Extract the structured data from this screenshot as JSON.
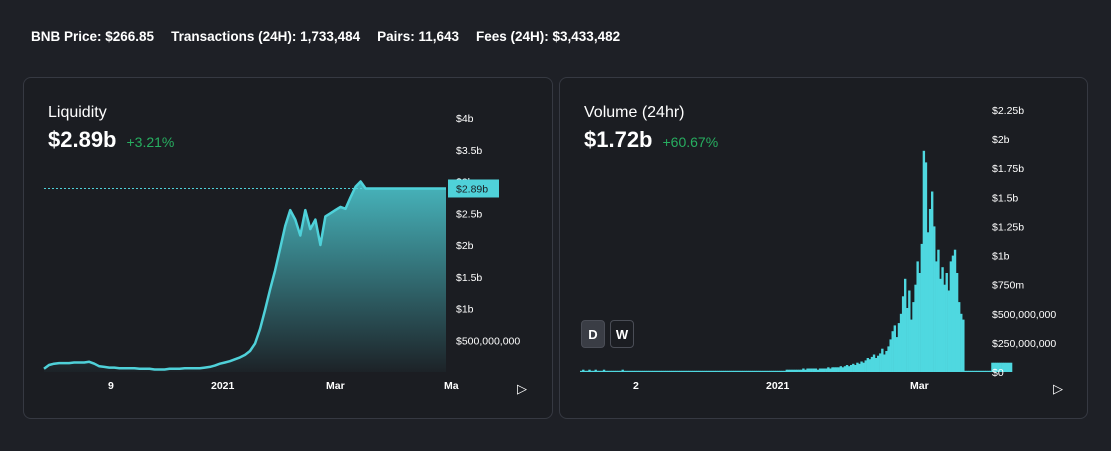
{
  "stats": {
    "bnb_price": "BNB Price: $266.85",
    "transactions": "Transactions (24H): 1,733,484",
    "pairs": "Pairs: 11,643",
    "fees": "Fees (24H): $3,433,482"
  },
  "liquidity": {
    "title": "Liquidity",
    "value": "$2.89b",
    "change": "+3.21%",
    "current_label": "$2.89b",
    "accent": "#4fd1d9",
    "chart_data": {
      "type": "area",
      "title": "Liquidity",
      "yticks": [
        "$500,000,000",
        "$1b",
        "$1.5b",
        "$2b",
        "$2.5b",
        "$3b",
        "$3.5b",
        "$4b"
      ],
      "ylim": [
        0,
        4000000000
      ],
      "xticks": [
        "9",
        "2021",
        "Mar",
        "Ma"
      ],
      "current_value": 2890000000,
      "series": [
        {
          "values": [
            0.05,
            0.11,
            0.13,
            0.14,
            0.14,
            0.14,
            0.15,
            0.15,
            0.15,
            0.16,
            0.13,
            0.09,
            0.08,
            0.07,
            0.07,
            0.06,
            0.06,
            0.06,
            0.06,
            0.05,
            0.05,
            0.05,
            0.04,
            0.04,
            0.04,
            0.05,
            0.05,
            0.05,
            0.06,
            0.06,
            0.06,
            0.06,
            0.07,
            0.08,
            0.1,
            0.13,
            0.15,
            0.17,
            0.2,
            0.23,
            0.27,
            0.33,
            0.45,
            0.68,
            0.98,
            1.3,
            1.6,
            1.95,
            2.3,
            2.55,
            2.4,
            2.15,
            2.55,
            2.25,
            2.4,
            2.0,
            2.45,
            2.5,
            2.55,
            2.6,
            2.57,
            2.75,
            2.92,
            3.0,
            2.89,
            2.89,
            2.89,
            2.89,
            2.89,
            2.89,
            2.89,
            2.89,
            2.89,
            2.89,
            2.89,
            2.89,
            2.89,
            2.89,
            2.89,
            2.89,
            2.89
          ]
        }
      ]
    }
  },
  "volume": {
    "title": "Volume (24hr)",
    "value": "$1.72b",
    "change": "+60.67%",
    "accent": "#4fd8e0",
    "toggle_d": "D",
    "toggle_w": "W",
    "chart_data": {
      "type": "bar",
      "title": "Volume (24hr)",
      "yticks": [
        "$0",
        "$250,000,000",
        "$500,000,000",
        "$750m",
        "$1b",
        "$1.25b",
        "$1.5b",
        "$1.75b",
        "$2b",
        "$2.25b"
      ],
      "ylim": [
        0,
        2250000000
      ],
      "xticks": [
        "2",
        "2021",
        "Mar"
      ],
      "series": [
        {
          "values": [
            0.01,
            0.02,
            0.01,
            0.01,
            0.02,
            0.01,
            0.01,
            0.02,
            0.01,
            0.01,
            0.01,
            0.02,
            0.01,
            0.01,
            0.01,
            0.01,
            0.01,
            0.01,
            0.01,
            0.01,
            0.02,
            0.01,
            0.01,
            0.01,
            0.01,
            0.01,
            0.01,
            0.01,
            0.01,
            0.01,
            0.01,
            0.01,
            0.01,
            0.01,
            0.01,
            0.01,
            0.01,
            0.01,
            0.01,
            0.01,
            0.01,
            0.01,
            0.01,
            0.01,
            0.01,
            0.01,
            0.01,
            0.01,
            0.01,
            0.01,
            0.01,
            0.01,
            0.01,
            0.01,
            0.01,
            0.01,
            0.01,
            0.01,
            0.01,
            0.01,
            0.01,
            0.01,
            0.01,
            0.01,
            0.01,
            0.01,
            0.01,
            0.01,
            0.01,
            0.01,
            0.01,
            0.01,
            0.01,
            0.01,
            0.01,
            0.01,
            0.01,
            0.01,
            0.01,
            0.01,
            0.01,
            0.01,
            0.01,
            0.01,
            0.01,
            0.01,
            0.01,
            0.01,
            0.01,
            0.01,
            0.01,
            0.01,
            0.01,
            0.01,
            0.01,
            0.01,
            0.01,
            0.01,
            0.01,
            0.02,
            0.02,
            0.02,
            0.02,
            0.02,
            0.02,
            0.02,
            0.02,
            0.03,
            0.02,
            0.03,
            0.03,
            0.03,
            0.03,
            0.03,
            0.02,
            0.03,
            0.03,
            0.03,
            0.03,
            0.04,
            0.03,
            0.04,
            0.04,
            0.04,
            0.04,
            0.05,
            0.04,
            0.05,
            0.06,
            0.05,
            0.06,
            0.07,
            0.06,
            0.08,
            0.07,
            0.09,
            0.08,
            0.1,
            0.12,
            0.11,
            0.13,
            0.15,
            0.12,
            0.14,
            0.16,
            0.2,
            0.15,
            0.18,
            0.22,
            0.28,
            0.35,
            0.4,
            0.3,
            0.42,
            0.5,
            0.65,
            0.8,
            0.55,
            0.7,
            0.45,
            0.6,
            0.75,
            0.95,
            0.85,
            1.1,
            1.9,
            1.8,
            1.2,
            1.4,
            1.55,
            1.25,
            0.95,
            1.05,
            0.8,
            0.9,
            0.75,
            0.85,
            0.7,
            0.95,
            1.0,
            1.05,
            0.85,
            0.6,
            0.5,
            0.45,
            0.01,
            0.01,
            0.01,
            0.01,
            0.01,
            0.01,
            0.01,
            0.01,
            0.01,
            0.01,
            0.01,
            0.01,
            0.01,
            0.08,
            0.08,
            0.08,
            0.08,
            0.08,
            0.08,
            0.08,
            0.08,
            0.08,
            0.08
          ]
        }
      ]
    }
  }
}
